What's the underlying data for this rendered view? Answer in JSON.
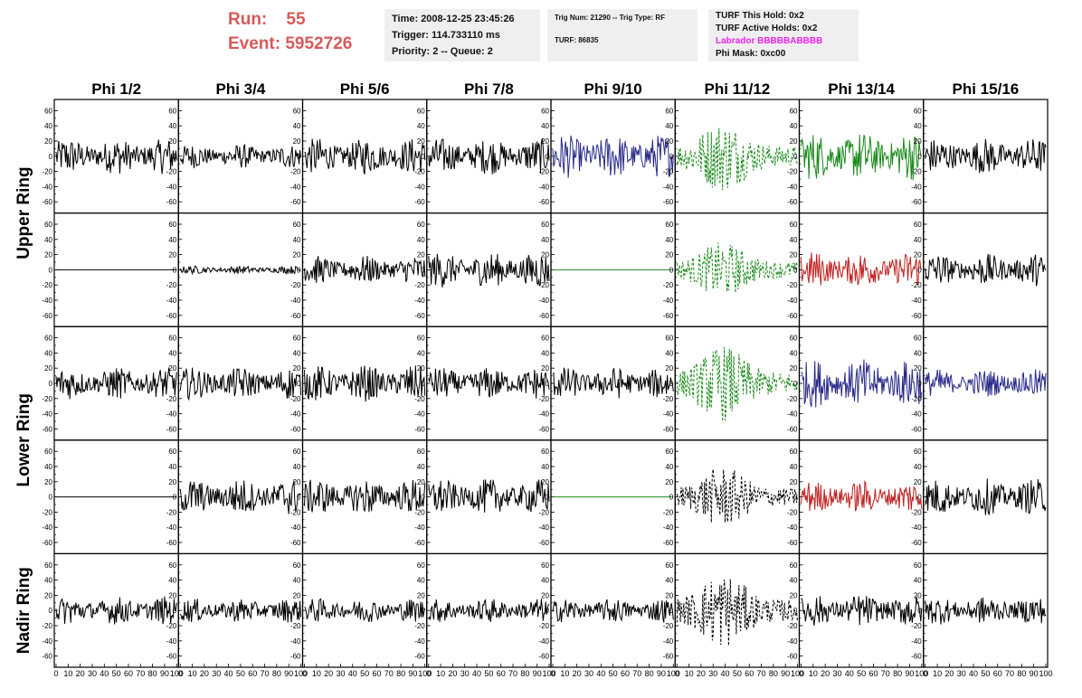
{
  "header": {
    "run_label": "Run:",
    "run_value": "55",
    "event_label": "Event:",
    "event_value": "5952726",
    "time": "Time: 2008-12-25 23:45:26",
    "trigger": "Trigger: 114.733110 ms",
    "priority": "Priority: 2 -- Queue: 2",
    "trig_num": "Trig Num: 21290 -- Trig Type: RF",
    "turf": "TURF: 86835",
    "turf_this_hold": "TURF This Hold: 0x2",
    "turf_active_holds": "TURF Active Holds: 0x2",
    "labrador": "Labrador BBBBBABBBB",
    "phi_mask": "Phi Mask: 0xc00"
  },
  "colors": {
    "run_text": "#d65a5a",
    "labrador_text": "#ee22ee",
    "info_bg": "#efefef"
  },
  "chart_data": {
    "type": "line",
    "title": "",
    "columns": [
      "Phi 1/2",
      "Phi 3/4",
      "Phi 5/6",
      "Phi 7/8",
      "Phi 9/10",
      "Phi 11/12",
      "Phi 13/14",
      "Phi 15/16"
    ],
    "rows": [
      "Upper Ring",
      "Lower Ring",
      "Nadir Ring"
    ],
    "subrow_labels": [
      "Upper Ring",
      "Upper Ring",
      "Lower Ring",
      "Lower Ring",
      "Nadir Ring"
    ],
    "xlim": [
      0,
      100
    ],
    "ylim": [
      -70,
      70
    ],
    "x_ticks": [
      "0",
      "10",
      "20",
      "30",
      "40",
      "50",
      "60",
      "70",
      "80",
      "90",
      "100"
    ],
    "y_ticks": [
      "-60",
      "-40",
      "-20",
      "0",
      "20",
      "40",
      "60"
    ],
    "grid": false,
    "panels": [
      [
        {
          "color": "#000000",
          "amp": 18,
          "style": "solid"
        },
        {
          "color": "#000000",
          "amp": 12,
          "style": "solid"
        },
        {
          "color": "#000000",
          "amp": 18,
          "style": "solid"
        },
        {
          "color": "#000000",
          "amp": 18,
          "style": "solid"
        },
        {
          "color": "#2a2a8a",
          "amp": 22,
          "style": "solid"
        },
        {
          "color": "#1a8a1a",
          "amp": 28,
          "style": "dashed"
        },
        {
          "color": "#1a8a1a",
          "amp": 24,
          "style": "solid"
        },
        {
          "color": "#000000",
          "amp": 18,
          "style": "solid"
        }
      ],
      [
        {
          "color": "#000000",
          "amp": 0,
          "style": "solid"
        },
        {
          "color": "#000000",
          "amp": 4,
          "style": "solid"
        },
        {
          "color": "#000000",
          "amp": 14,
          "style": "solid"
        },
        {
          "color": "#000000",
          "amp": 18,
          "style": "solid"
        },
        {
          "color": "#1a8a1a",
          "amp": 0,
          "style": "solid"
        },
        {
          "color": "#1a8a1a",
          "amp": 22,
          "style": "dashed"
        },
        {
          "color": "#c02020",
          "amp": 18,
          "style": "solid"
        },
        {
          "color": "#000000",
          "amp": 16,
          "style": "solid"
        }
      ],
      [
        {
          "color": "#000000",
          "amp": 16,
          "style": "solid"
        },
        {
          "color": "#000000",
          "amp": 16,
          "style": "solid"
        },
        {
          "color": "#000000",
          "amp": 18,
          "style": "solid"
        },
        {
          "color": "#000000",
          "amp": 16,
          "style": "solid"
        },
        {
          "color": "#000000",
          "amp": 16,
          "style": "solid"
        },
        {
          "color": "#1a8a1a",
          "amp": 30,
          "style": "dashed"
        },
        {
          "color": "#2a2a8a",
          "amp": 24,
          "style": "solid"
        },
        {
          "color": "#2a2a8a",
          "amp": 14,
          "style": "solid"
        }
      ],
      [
        {
          "color": "#000000",
          "amp": 0,
          "style": "solid"
        },
        {
          "color": "#000000",
          "amp": 18,
          "style": "solid"
        },
        {
          "color": "#000000",
          "amp": 18,
          "style": "solid"
        },
        {
          "color": "#000000",
          "amp": 18,
          "style": "solid"
        },
        {
          "color": "#1a8a1a",
          "amp": 0,
          "style": "solid"
        },
        {
          "color": "#000000",
          "amp": 24,
          "style": "dashed"
        },
        {
          "color": "#c02020",
          "amp": 16,
          "style": "solid"
        },
        {
          "color": "#000000",
          "amp": 18,
          "style": "solid"
        }
      ],
      [
        {
          "color": "#000000",
          "amp": 14,
          "style": "solid"
        },
        {
          "color": "#000000",
          "amp": 12,
          "style": "solid"
        },
        {
          "color": "#000000",
          "amp": 12,
          "style": "solid"
        },
        {
          "color": "#000000",
          "amp": 12,
          "style": "solid"
        },
        {
          "color": "#000000",
          "amp": 12,
          "style": "solid"
        },
        {
          "color": "#000000",
          "amp": 30,
          "style": "dashed"
        },
        {
          "color": "#000000",
          "amp": 16,
          "style": "solid"
        },
        {
          "color": "#000000",
          "amp": 14,
          "style": "solid"
        }
      ]
    ]
  }
}
